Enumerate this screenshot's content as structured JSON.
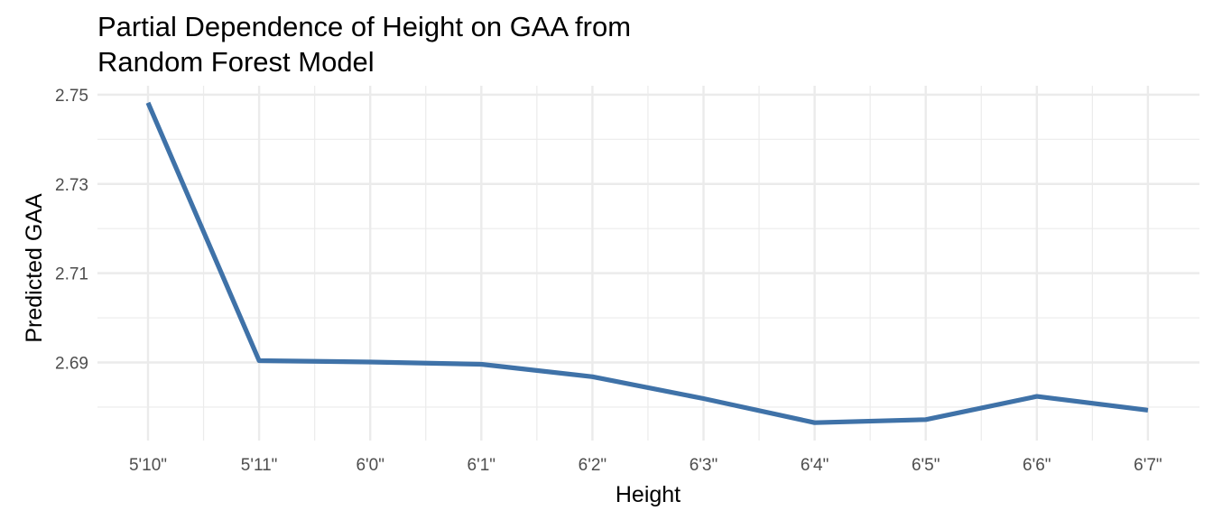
{
  "chart_data": {
    "type": "line",
    "title_lines": [
      "Partial Dependence of Height on GAA from",
      "Random Forest Model"
    ],
    "xlabel": "Height",
    "ylabel": "Predicted GAA",
    "categories": [
      "5'10\"",
      "5'11\"",
      "6'0\"",
      "6'1\"",
      "6'2\"",
      "6'3\"",
      "6'4\"",
      "6'5\"",
      "6'6\"",
      "6'7\""
    ],
    "series": [
      {
        "values": [
          2.7482,
          2.6904,
          2.6901,
          2.6896,
          2.6868,
          2.6819,
          2.6765,
          2.6772,
          2.6824,
          2.6793
        ]
      }
    ],
    "ylim": [
      2.6725,
      2.752
    ],
    "y_ticks": [
      2.69,
      2.71,
      2.73,
      2.75
    ],
    "y_tick_labels": [
      "2.69",
      "2.71",
      "2.73",
      "2.75"
    ],
    "grid": true,
    "legend": "none",
    "line_color": "#3f72a8",
    "grid_color": "#ebebeb"
  }
}
